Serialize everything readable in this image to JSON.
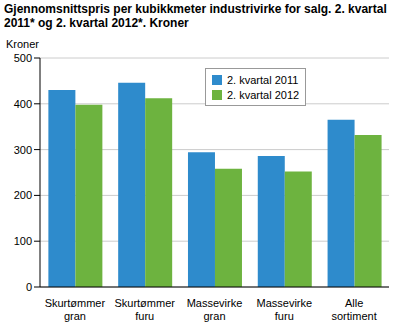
{
  "chart_data": {
    "type": "bar",
    "title": "Gjennomsnittspris per kubikkmeter industrivirke for salg. 2. kvartal 2011* og 2. kvartal 2012*. Kroner",
    "y_label": "Kroner",
    "categories": [
      "Skurtømmer gran",
      "Skurtømmer furu",
      "Massevirke gran",
      "Massevirke furu",
      "Alle sortiment"
    ],
    "series": [
      {
        "name": "2. kvartal 2011",
        "color": "#2e8bcc",
        "values": [
          430,
          446,
          294,
          286,
          365
        ]
      },
      {
        "name": "2. kvartal 2012",
        "color": "#6db33f",
        "values": [
          398,
          412,
          258,
          252,
          332
        ]
      }
    ],
    "ylim": [
      0,
      500
    ],
    "yticks": [
      0,
      100,
      200,
      300,
      400,
      500
    ],
    "grid": true,
    "legend": "upper center"
  }
}
